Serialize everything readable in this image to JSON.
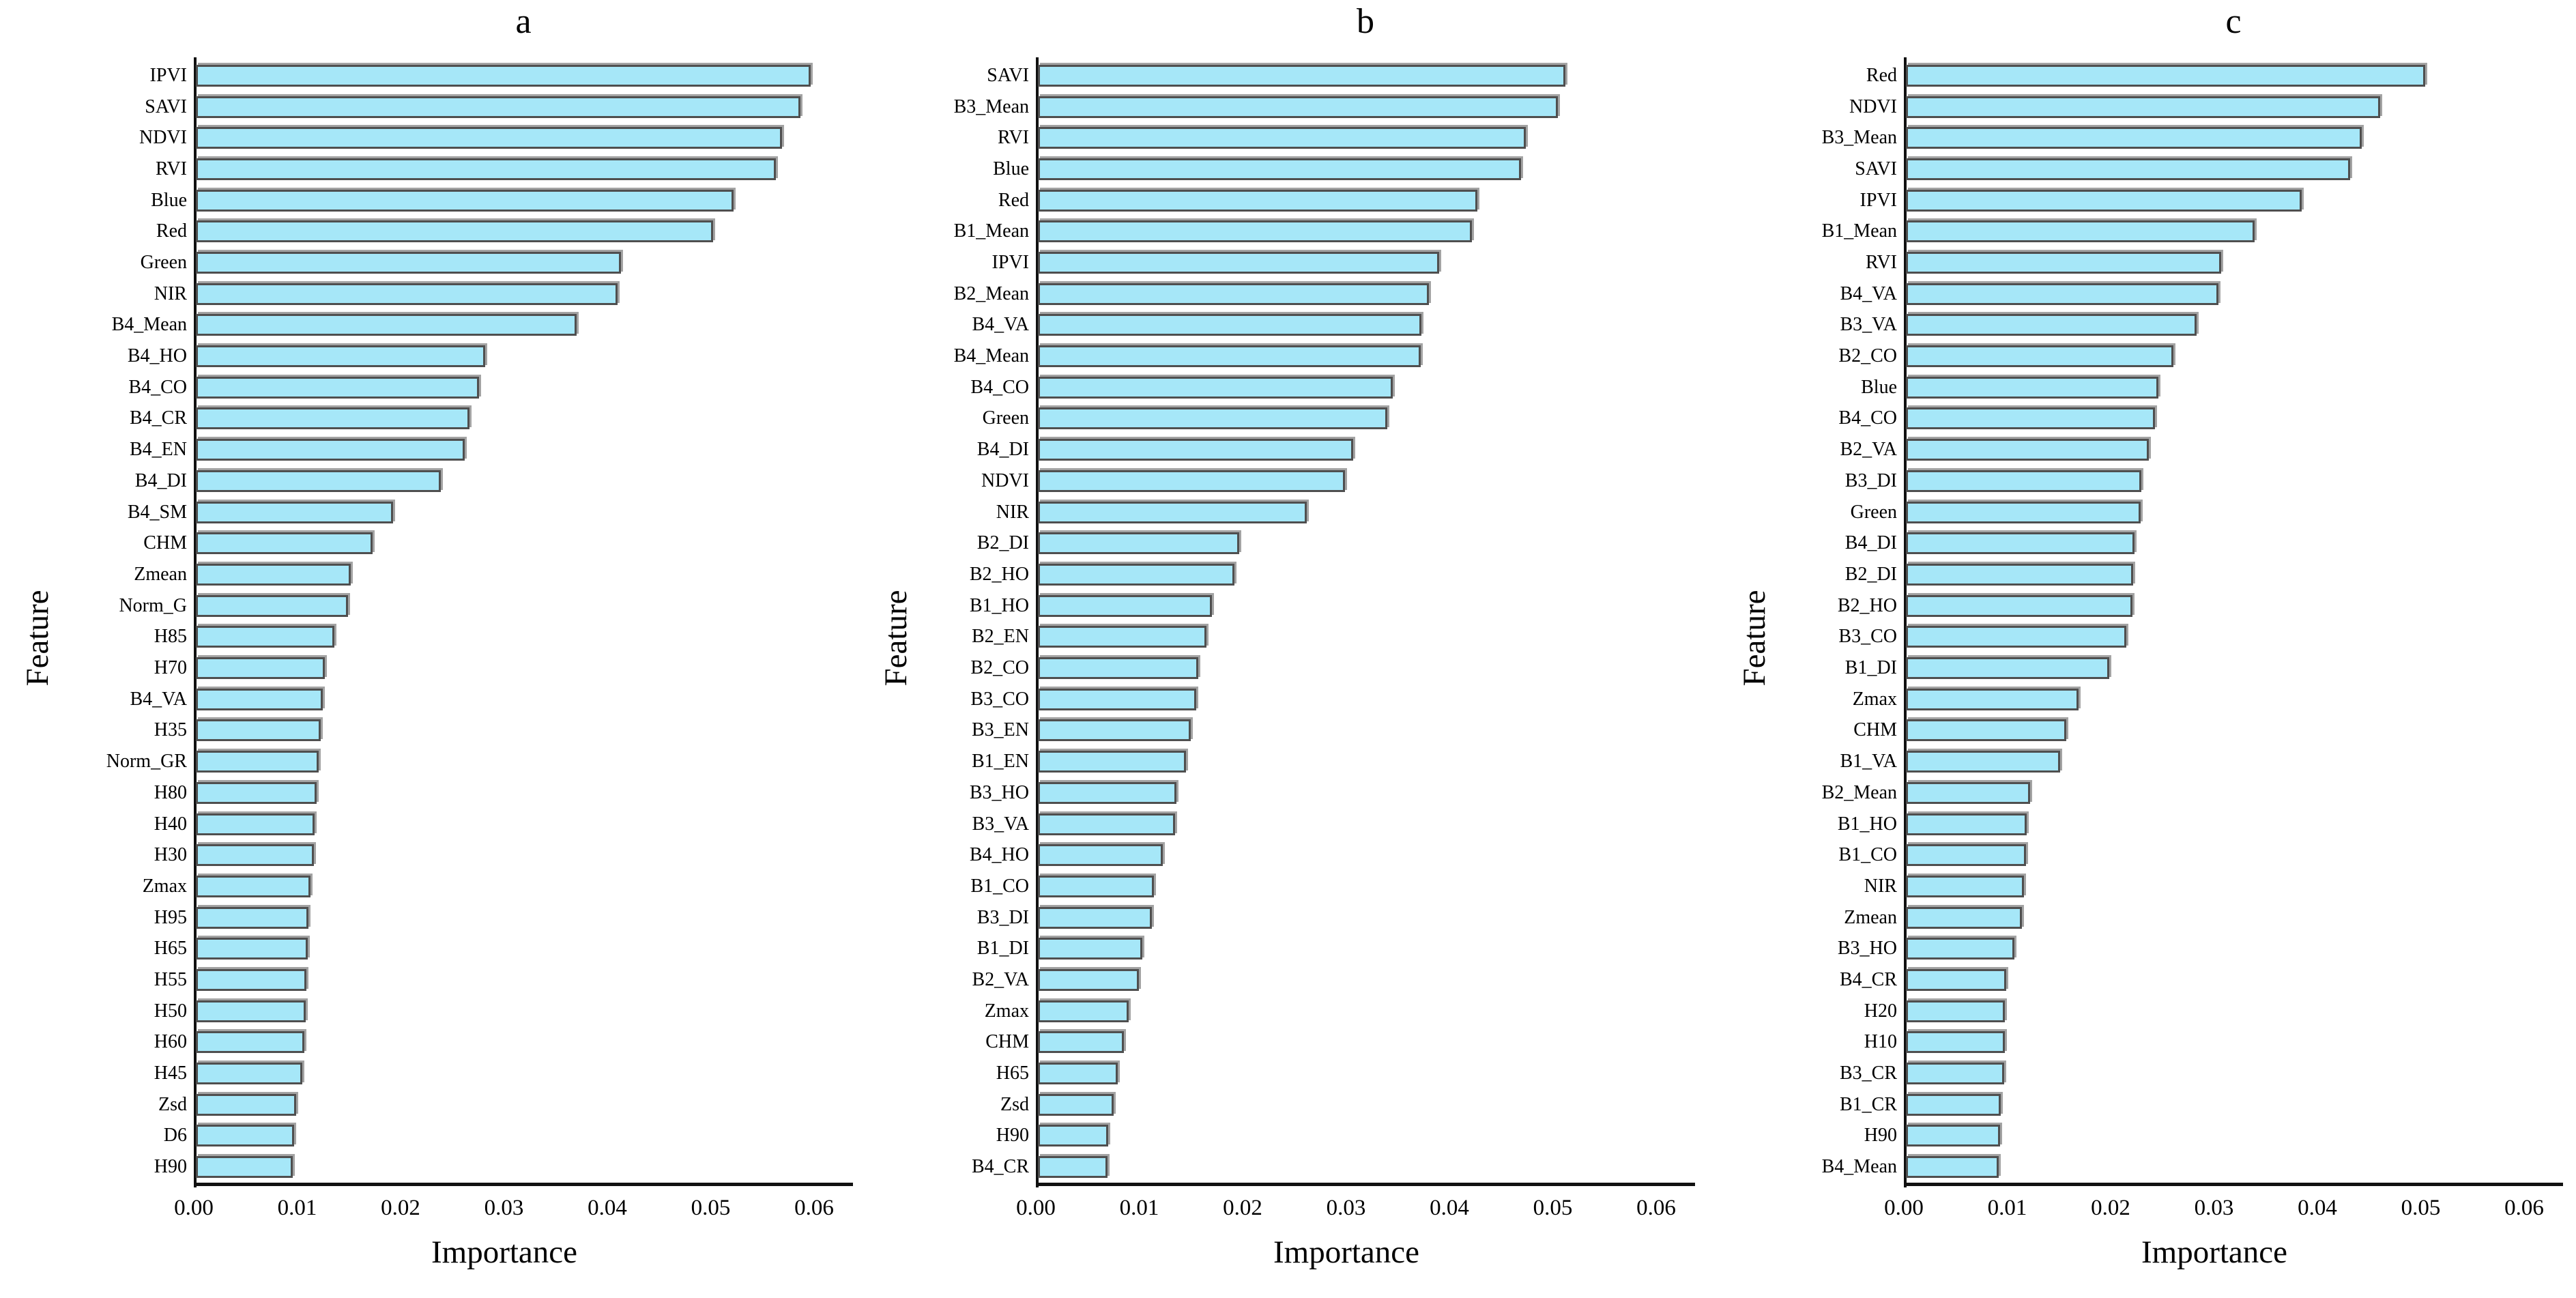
{
  "style": {
    "bar_fill": "#a6e7f8",
    "bar_border": "#4f4f4f",
    "bar_shadow": "#a3a3a3",
    "axis_color": "#111111",
    "text_color": "#000000",
    "background": "#ffffff"
  },
  "chart_data": [
    {
      "id": "a",
      "type": "bar",
      "orientation": "horizontal",
      "title": "a",
      "xlabel": "Importance",
      "ylabel": "Feature",
      "grid": false,
      "legend": null,
      "xlim": [
        0,
        0.0638
      ],
      "xticks": [
        0,
        0.01,
        0.02,
        0.03,
        0.04,
        0.05,
        0.06
      ],
      "xtick_labels": [
        "0.00",
        "0.01",
        "0.02",
        "0.03",
        "0.04",
        "0.05",
        "0.06"
      ],
      "categories": [
        "IPVI",
        "SAVI",
        "NDVI",
        "RVI",
        "Blue",
        "Red",
        "Green",
        "NIR",
        "B4_Mean",
        "B4_HO",
        "B4_CO",
        "B4_CR",
        "B4_EN",
        "B4_DI",
        "B4_SM",
        "CHM",
        "Zmean",
        "Norm_G",
        "H85",
        "H70",
        "B4_VA",
        "H35",
        "Norm_GR",
        "H80",
        "H40",
        "H30",
        "Zmax",
        "H95",
        "H65",
        "H55",
        "H50",
        "H60",
        "H45",
        "Zsd",
        "D6",
        "H90"
      ],
      "values": [
        0.0595,
        0.0585,
        0.0567,
        0.0561,
        0.052,
        0.05,
        0.0411,
        0.0408,
        0.0368,
        0.028,
        0.0274,
        0.0265,
        0.026,
        0.0237,
        0.0191,
        0.0171,
        0.015,
        0.0147,
        0.0134,
        0.0125,
        0.0123,
        0.0121,
        0.0119,
        0.0117,
        0.0115,
        0.0114,
        0.0111,
        0.0109,
        0.0108,
        0.0107,
        0.0106,
        0.0105,
        0.0103,
        0.0097,
        0.0095,
        0.0094
      ]
    },
    {
      "id": "b",
      "type": "bar",
      "orientation": "horizontal",
      "title": "b",
      "xlabel": "Importance",
      "ylabel": "Feature",
      "grid": false,
      "legend": null,
      "xlim": [
        0,
        0.0638
      ],
      "xticks": [
        0,
        0.01,
        0.02,
        0.03,
        0.04,
        0.05,
        0.06
      ],
      "xtick_labels": [
        "0.00",
        "0.01",
        "0.02",
        "0.03",
        "0.04",
        "0.05",
        "0.06"
      ],
      "categories": [
        "SAVI",
        "B3_Mean",
        "RVI",
        "Blue",
        "Red",
        "B1_Mean",
        "IPVI",
        "B2_Mean",
        "B4_VA",
        "B4_Mean",
        "B4_CO",
        "Green",
        "B4_DI",
        "NDVI",
        "NIR",
        "B2_DI",
        "B2_HO",
        "B1_HO",
        "B2_EN",
        "B2_CO",
        "B3_CO",
        "B3_EN",
        "B1_EN",
        "B3_HO",
        "B3_VA",
        "B4_HO",
        "B1_CO",
        "B3_DI",
        "B1_DI",
        "B2_VA",
        "Zmax",
        "CHM",
        "H65",
        "Zsd",
        "H90",
        "B4_CR"
      ],
      "values": [
        0.051,
        0.0503,
        0.0472,
        0.0467,
        0.0425,
        0.042,
        0.0388,
        0.0378,
        0.0371,
        0.037,
        0.0343,
        0.0338,
        0.0305,
        0.0297,
        0.026,
        0.0195,
        0.019,
        0.0168,
        0.0163,
        0.0155,
        0.0153,
        0.0148,
        0.0143,
        0.0134,
        0.0133,
        0.0121,
        0.0112,
        0.011,
        0.0101,
        0.0098,
        0.0088,
        0.0083,
        0.0077,
        0.0073,
        0.0068,
        0.0067
      ]
    },
    {
      "id": "c",
      "type": "bar",
      "orientation": "horizontal",
      "title": "c",
      "xlabel": "Importance",
      "ylabel": "Feature",
      "grid": false,
      "legend": null,
      "xlim": [
        0,
        0.0638
      ],
      "xticks": [
        0,
        0.01,
        0.02,
        0.03,
        0.04,
        0.05,
        0.06
      ],
      "xtick_labels": [
        "0.00",
        "0.01",
        "0.02",
        "0.03",
        "0.04",
        "0.05",
        "0.06"
      ],
      "categories": [
        "Red",
        "NDVI",
        "B3_Mean",
        "SAVI",
        "IPVI",
        "B1_Mean",
        "RVI",
        "B4_VA",
        "B3_VA",
        "B2_CO",
        "Blue",
        "B4_CO",
        "B2_VA",
        "B3_DI",
        "Green",
        "B4_DI",
        "B2_DI",
        "B2_HO",
        "B3_CO",
        "B1_DI",
        "Zmax",
        "CHM",
        "B1_VA",
        "B2_Mean",
        "B1_HO",
        "B1_CO",
        "NIR",
        "Zmean",
        "B3_HO",
        "B4_CR",
        "H20",
        "H10",
        "B3_CR",
        "B1_CR",
        "H90",
        "B4_Mean"
      ],
      "values": [
        0.0502,
        0.0459,
        0.0441,
        0.043,
        0.0383,
        0.0337,
        0.0305,
        0.0302,
        0.0281,
        0.0259,
        0.0244,
        0.0241,
        0.0235,
        0.0228,
        0.0227,
        0.0221,
        0.022,
        0.0219,
        0.0213,
        0.0197,
        0.0167,
        0.0155,
        0.0149,
        0.012,
        0.0117,
        0.0116,
        0.0114,
        0.0112,
        0.0105,
        0.0097,
        0.0096,
        0.0096,
        0.0095,
        0.0092,
        0.0091,
        0.009
      ]
    }
  ]
}
